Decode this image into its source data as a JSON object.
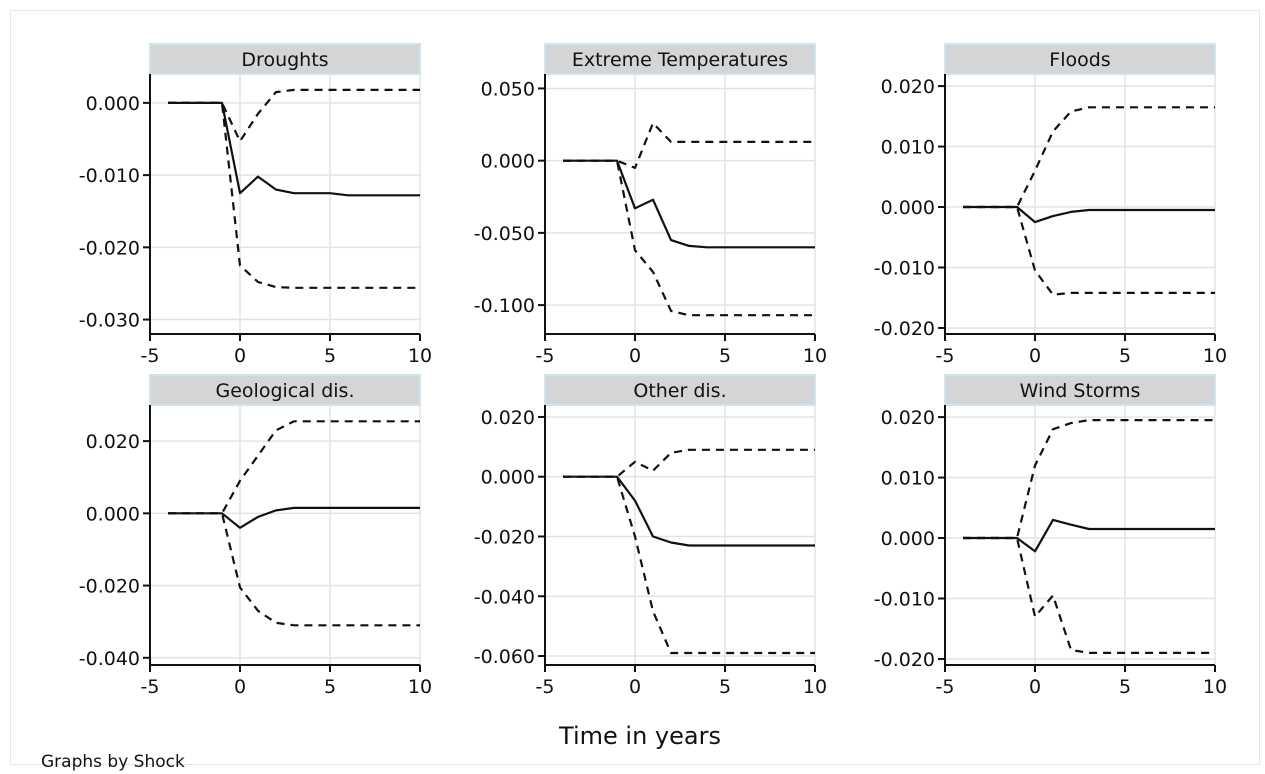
{
  "chart_data": {
    "type": "line",
    "xlabel": "Time in years",
    "note": "Graphs by Shock",
    "x": [
      -4,
      -3,
      -2,
      -1,
      0,
      1,
      2,
      3,
      4,
      5,
      6,
      7,
      8,
      9,
      10
    ],
    "xticks": [
      -5,
      0,
      5,
      10
    ],
    "xtick_labels": [
      "-5",
      "0",
      "5",
      "10"
    ],
    "grid": true,
    "style": {
      "estimate": "solid",
      "bounds": "dashed",
      "line_color": "#111111",
      "grid_color": "#e3e3e3",
      "header_fill": "#d5d5d5",
      "header_border": "#cfe3ee"
    },
    "panels": [
      {
        "title": "Droughts",
        "ylim": [
          -0.032,
          0.004
        ],
        "yticks": [
          0.0,
          -0.01,
          -0.02,
          -0.03
        ],
        "ytick_labels": [
          "0.000",
          "-0.010",
          "-0.020",
          "-0.030"
        ],
        "estimate": [
          0,
          0,
          0,
          0,
          -0.0125,
          -0.0102,
          -0.012,
          -0.0125,
          -0.0125,
          -0.0125,
          -0.0128,
          -0.0128,
          -0.0128,
          -0.0128,
          -0.0128
        ],
        "upper": [
          0,
          0,
          0,
          0,
          -0.0053,
          -0.0015,
          0.0015,
          0.0018,
          0.0018,
          0.0018,
          0.0018,
          0.0018,
          0.0018,
          0.0018,
          0.0018
        ],
        "lower": [
          0,
          0,
          0,
          0,
          -0.0225,
          -0.0248,
          -0.0255,
          -0.0256,
          -0.0256,
          -0.0256,
          -0.0256,
          -0.0256,
          -0.0256,
          -0.0256,
          -0.0256
        ]
      },
      {
        "title": "Extreme Temperatures",
        "ylim": [
          -0.12,
          0.06
        ],
        "yticks": [
          0.05,
          0.0,
          -0.05,
          -0.1
        ],
        "ytick_labels": [
          "0.050",
          "0.000",
          "-0.050",
          "-0.100"
        ],
        "estimate": [
          0,
          0,
          0,
          0,
          -0.033,
          -0.027,
          -0.055,
          -0.059,
          -0.06,
          -0.06,
          -0.06,
          -0.06,
          -0.06,
          -0.06,
          -0.06
        ],
        "upper": [
          0,
          0,
          0,
          0,
          -0.005,
          0.026,
          0.013,
          0.013,
          0.013,
          0.013,
          0.013,
          0.013,
          0.013,
          0.013,
          0.013
        ],
        "lower": [
          0,
          0,
          0,
          0,
          -0.062,
          -0.077,
          -0.104,
          -0.107,
          -0.107,
          -0.107,
          -0.107,
          -0.107,
          -0.107,
          -0.107,
          -0.107
        ]
      },
      {
        "title": "Floods",
        "ylim": [
          -0.021,
          0.022
        ],
        "yticks": [
          0.02,
          0.01,
          0.0,
          -0.01,
          -0.02
        ],
        "ytick_labels": [
          "0.020",
          "0.010",
          "0.000",
          "-0.010",
          "-0.020"
        ],
        "estimate": [
          0,
          0,
          0,
          0,
          -0.0025,
          -0.0015,
          -0.0008,
          -0.0005,
          -0.0005,
          -0.0005,
          -0.0005,
          -0.0005,
          -0.0005,
          -0.0005,
          -0.0005
        ],
        "upper": [
          0,
          0,
          0,
          0,
          0.006,
          0.0125,
          0.0158,
          0.0165,
          0.0165,
          0.0165,
          0.0165,
          0.0165,
          0.0165,
          0.0165,
          0.0165
        ],
        "lower": [
          0,
          0,
          0,
          0,
          -0.0105,
          -0.0145,
          -0.0142,
          -0.0142,
          -0.0142,
          -0.0142,
          -0.0142,
          -0.0142,
          -0.0142,
          -0.0142,
          -0.0142
        ]
      },
      {
        "title": "Geological dis.",
        "ylim": [
          -0.042,
          0.03
        ],
        "yticks": [
          0.02,
          0.0,
          -0.02,
          -0.04
        ],
        "ytick_labels": [
          "0.020",
          "0.000",
          "-0.020",
          "-0.040"
        ],
        "estimate": [
          0,
          0,
          0,
          0,
          -0.004,
          -0.001,
          0.0008,
          0.0015,
          0.0015,
          0.0015,
          0.0015,
          0.0015,
          0.0015,
          0.0015,
          0.0015
        ],
        "upper": [
          0,
          0,
          0,
          0,
          0.009,
          0.016,
          0.023,
          0.0255,
          0.0255,
          0.0255,
          0.0255,
          0.0255,
          0.0255,
          0.0255,
          0.0255
        ],
        "lower": [
          0,
          0,
          0,
          0,
          -0.0205,
          -0.027,
          -0.0303,
          -0.031,
          -0.031,
          -0.031,
          -0.031,
          -0.031,
          -0.031,
          -0.031,
          -0.031
        ]
      },
      {
        "title": "Other dis.",
        "ylim": [
          -0.063,
          0.024
        ],
        "yticks": [
          0.02,
          0.0,
          -0.02,
          -0.04,
          -0.06
        ],
        "ytick_labels": [
          "0.020",
          "0.000",
          "-0.020",
          "-0.040",
          "-0.060"
        ],
        "estimate": [
          0,
          0,
          0,
          0,
          -0.008,
          -0.02,
          -0.022,
          -0.023,
          -0.023,
          -0.023,
          -0.023,
          -0.023,
          -0.023,
          -0.023,
          -0.023
        ],
        "upper": [
          0,
          0,
          0,
          0,
          0.005,
          0.002,
          0.008,
          0.009,
          0.009,
          0.009,
          0.009,
          0.009,
          0.009,
          0.009,
          0.009
        ],
        "lower": [
          0,
          0,
          0,
          0,
          -0.02,
          -0.045,
          -0.059,
          -0.059,
          -0.059,
          -0.059,
          -0.059,
          -0.059,
          -0.059,
          -0.059,
          -0.059
        ]
      },
      {
        "title": "Wind Storms",
        "ylim": [
          -0.021,
          0.022
        ],
        "yticks": [
          0.02,
          0.01,
          0.0,
          -0.01,
          -0.02
        ],
        "ytick_labels": [
          "0.020",
          "0.010",
          "0.000",
          "-0.010",
          "-0.020"
        ],
        "estimate": [
          0,
          0,
          0,
          0,
          -0.0022,
          0.003,
          0.0022,
          0.0015,
          0.0015,
          0.0015,
          0.0015,
          0.0015,
          0.0015,
          0.0015,
          0.0015
        ],
        "upper": [
          0,
          0,
          0,
          0,
          0.012,
          0.018,
          0.019,
          0.0195,
          0.0195,
          0.0195,
          0.0195,
          0.0195,
          0.0195,
          0.0195,
          0.0195
        ],
        "lower": [
          0,
          0,
          0,
          0,
          -0.013,
          -0.0095,
          -0.0185,
          -0.019,
          -0.019,
          -0.019,
          -0.019,
          -0.019,
          -0.019,
          -0.019,
          -0.019
        ]
      }
    ]
  }
}
